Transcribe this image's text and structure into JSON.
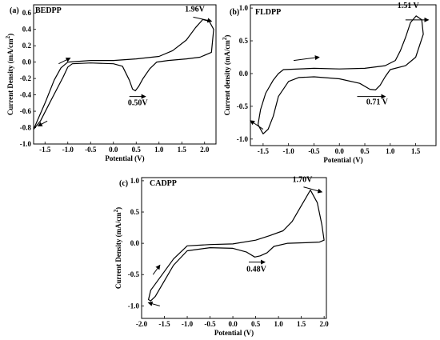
{
  "chart_data": [
    {
      "type": "line",
      "panel_letter": "(a)",
      "title": "BEDPP",
      "xlabel": "Potential (V)",
      "ylabel": "Current Density (mA/cm",
      "ylabel_sup": "2",
      "ylabel_close": ")",
      "xlim": [
        -1.75,
        2.25
      ],
      "ylim": [
        -1.0,
        0.7
      ],
      "xticks": [
        -1.5,
        -1.0,
        -0.5,
        0.0,
        0.5,
        1.0,
        1.5,
        2.0
      ],
      "xtick_labels": [
        "-1.5",
        "-1.0",
        "-0.5",
        "0.0",
        "0.5",
        "1.0",
        "1.5",
        "2.0"
      ],
      "yticks": [
        -1.0,
        -0.8,
        -0.6,
        -0.4,
        -0.2,
        0.0,
        0.2,
        0.4,
        0.6
      ],
      "ytick_labels": [
        "-1.0",
        "-0.8",
        "-0.6",
        "-0.4",
        "-0.2",
        "0.0",
        "0.2",
        "0.4",
        "0.6"
      ],
      "series": [
        {
          "x": [
            -1.75,
            -1.5,
            -1.3,
            -1.15,
            -1.0,
            -0.5,
            0.0,
            0.5,
            1.0,
            1.3,
            1.6,
            1.8,
            1.96,
            2.1,
            2.2,
            2.15,
            1.9,
            1.6,
            1.2,
            0.95,
            0.8,
            0.65,
            0.55,
            0.48,
            0.42,
            0.35,
            0.2,
            0.0,
            -0.5,
            -0.9,
            -1.0,
            -1.1,
            -1.4,
            -1.6,
            -1.75
          ],
          "y": [
            -0.82,
            -0.5,
            -0.22,
            -0.07,
            0.0,
            0.02,
            0.02,
            0.04,
            0.07,
            0.14,
            0.27,
            0.42,
            0.52,
            0.5,
            0.4,
            0.12,
            0.06,
            0.04,
            0.02,
            0.0,
            -0.08,
            -0.2,
            -0.3,
            -0.35,
            -0.33,
            -0.22,
            -0.05,
            -0.02,
            -0.01,
            -0.02,
            -0.06,
            -0.18,
            -0.5,
            -0.72,
            -0.82
          ]
        }
      ],
      "annotations": [
        {
          "text": "1.96V",
          "x": 1.96,
          "y": 0.52
        },
        {
          "text": "0.50V",
          "x": 0.5,
          "y": -0.35
        }
      ],
      "grid": false
    },
    {
      "type": "line",
      "panel_letter": "(b)",
      "title": "FLDPP",
      "xlabel": "Potential (V)",
      "ylabel": "Current density (mA/cm",
      "ylabel_sup": "2",
      "ylabel_close": ")",
      "xlim": [
        -1.75,
        1.9
      ],
      "ylim": [
        -1.1,
        1.05
      ],
      "xticks": [
        -1.5,
        -1.0,
        -0.5,
        0.0,
        0.5,
        1.0,
        1.5
      ],
      "xtick_labels": [
        "-1.5",
        "-1.0",
        "-0.5",
        "0.0",
        "0.5",
        "1.0",
        "1.5"
      ],
      "yticks": [
        -1.0,
        -0.5,
        0.0,
        0.5,
        1.0
      ],
      "ytick_labels": [
        "-1.0",
        "-0.5",
        "0.0",
        "0.5",
        "1.0"
      ],
      "series": [
        {
          "x": [
            -1.55,
            -1.45,
            -1.3,
            -1.2,
            -1.1,
            -0.5,
            0.0,
            0.5,
            0.9,
            1.1,
            1.2,
            1.3,
            1.4,
            1.51,
            1.62,
            1.65,
            1.5,
            1.3,
            1.0,
            0.9,
            0.8,
            0.71,
            0.6,
            0.4,
            0.0,
            -0.5,
            -0.8,
            -1.0,
            -1.2,
            -1.3,
            -1.4,
            -1.5,
            -1.6,
            -1.55
          ],
          "y": [
            -0.55,
            -0.3,
            -0.1,
            0.0,
            0.06,
            0.08,
            0.07,
            0.08,
            0.12,
            0.2,
            0.35,
            0.55,
            0.78,
            0.88,
            0.82,
            0.6,
            0.25,
            0.12,
            0.06,
            -0.05,
            -0.18,
            -0.25,
            -0.24,
            -0.15,
            -0.08,
            -0.05,
            -0.06,
            -0.12,
            -0.35,
            -0.65,
            -0.85,
            -0.92,
            -0.78,
            -0.55
          ]
        }
      ],
      "annotations": [
        {
          "text": "1.51 V",
          "x": 1.51,
          "y": 0.88
        },
        {
          "text": "0.71 V",
          "x": 0.71,
          "y": -0.25
        }
      ],
      "grid": false
    },
    {
      "type": "line",
      "panel_letter": "(c)",
      "title": "CADPP",
      "xlabel": "Potential (V)",
      "ylabel": "Current Density (mA/cm",
      "ylabel_sup": "2",
      "ylabel_close": ")",
      "xlim": [
        -2.0,
        2.05
      ],
      "ylim": [
        -1.2,
        1.05
      ],
      "xticks": [
        -2.0,
        -1.5,
        -1.0,
        -0.5,
        0.0,
        0.5,
        1.0,
        1.5,
        2.0
      ],
      "xtick_labels": [
        "-2.0",
        "-1.5",
        "-1.0",
        "-0.5",
        "0.0",
        "0.5",
        "1.0",
        "1.5",
        "2.0"
      ],
      "yticks": [
        -1.0,
        -0.5,
        0.0,
        0.5,
        1.0
      ],
      "ytick_labels": [
        "-1.0",
        "-0.5",
        "0.0",
        "0.5",
        "1.0"
      ],
      "series": [
        {
          "x": [
            -1.8,
            -1.6,
            -1.3,
            -1.0,
            -0.5,
            0.0,
            0.5,
            0.8,
            1.1,
            1.3,
            1.5,
            1.7,
            1.85,
            1.95,
            2.0,
            1.9,
            1.6,
            1.2,
            0.9,
            0.75,
            0.6,
            0.48,
            0.3,
            0.0,
            -0.5,
            -1.0,
            -1.3,
            -1.5,
            -1.7,
            -1.8,
            -1.85,
            -1.8
          ],
          "y": [
            -0.75,
            -0.55,
            -0.25,
            -0.04,
            -0.02,
            -0.01,
            0.05,
            0.12,
            0.2,
            0.35,
            0.6,
            0.85,
            0.65,
            0.3,
            0.05,
            0.02,
            0.01,
            0.0,
            -0.05,
            -0.15,
            -0.2,
            -0.22,
            -0.14,
            -0.08,
            -0.07,
            -0.12,
            -0.35,
            -0.6,
            -0.85,
            -0.92,
            -0.9,
            -0.75
          ]
        }
      ],
      "annotations": [
        {
          "text": "1.70V",
          "x": 1.7,
          "y": 0.85
        },
        {
          "text": "0.48V",
          "x": 0.48,
          "y": -0.22
        }
      ],
      "grid": false
    }
  ]
}
